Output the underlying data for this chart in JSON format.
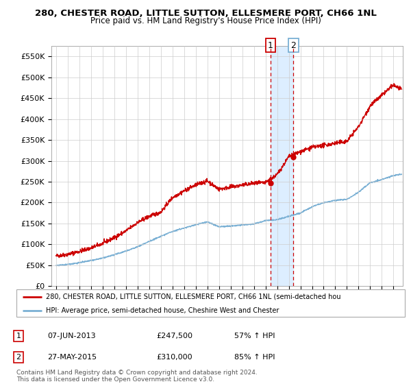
{
  "title": "280, CHESTER ROAD, LITTLE SUTTON, ELLESMERE PORT, CH66 1NL",
  "subtitle": "Price paid vs. HM Land Registry's House Price Index (HPI)",
  "ylim": [
    0,
    575000
  ],
  "yticks": [
    0,
    50000,
    100000,
    150000,
    200000,
    250000,
    300000,
    350000,
    400000,
    450000,
    500000,
    550000
  ],
  "ytick_labels": [
    "£0",
    "£50K",
    "£100K",
    "£150K",
    "£200K",
    "£250K",
    "£300K",
    "£350K",
    "£400K",
    "£450K",
    "£500K",
    "£550K"
  ],
  "xlim_start": 1994.6,
  "xlim_end": 2024.8,
  "red_line_color": "#cc0000",
  "blue_line_color": "#7ab0d4",
  "point1_x": 2013.44,
  "point1_y": 247500,
  "point2_x": 2015.41,
  "point2_y": 310000,
  "vline_color": "#cc0000",
  "highlight_color": "#ddeeff",
  "legend_red_label": "280, CHESTER ROAD, LITTLE SUTTON, ELLESMERE PORT, CH66 1NL (semi-detached hou",
  "legend_blue_label": "HPI: Average price, semi-detached house, Cheshire West and Chester",
  "annotation1_label": "1",
  "annotation1_date": "07-JUN-2013",
  "annotation1_price": "£247,500",
  "annotation1_hpi": "57% ↑ HPI",
  "annotation2_label": "2",
  "annotation2_date": "27-MAY-2015",
  "annotation2_price": "£310,000",
  "annotation2_hpi": "85% ↑ HPI",
  "footer": "Contains HM Land Registry data © Crown copyright and database right 2024.\nThis data is licensed under the Open Government Licence v3.0.",
  "background_color": "#ffffff",
  "grid_color": "#cccccc",
  "title_fontsize": 9.5,
  "subtitle_fontsize": 8.5
}
